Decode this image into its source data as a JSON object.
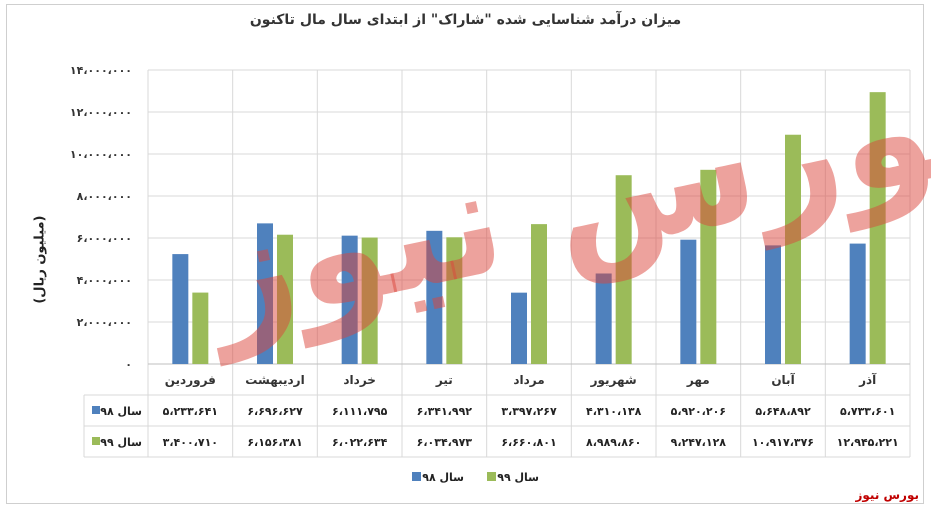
{
  "colors": {
    "s98": "#4f81bd",
    "s99": "#9bbb59",
    "grid": "#d9d9d9",
    "watermark": "#dc463c",
    "source": "#c00000"
  },
  "source_label": "بورس نیوز",
  "watermark_text": "بورس نیوز",
  "chart_data": {
    "type": "bar",
    "title": "میزان درآمد شناسایی شده \"شاراک\" از ابتدای سال مال تاکنون",
    "ylabel": "(میلیون ریال)",
    "xlabel": "",
    "ylim": [
      0,
      14000000
    ],
    "yticks": [
      0,
      2000000,
      4000000,
      6000000,
      8000000,
      10000000,
      12000000,
      14000000
    ],
    "ytick_labels": [
      "۰",
      "۲،۰۰۰،۰۰۰",
      "۴،۰۰۰،۰۰۰",
      "۶،۰۰۰،۰۰۰",
      "۸،۰۰۰،۰۰۰",
      "۱۰،۰۰۰،۰۰۰",
      "۱۲،۰۰۰،۰۰۰",
      "۱۴،۰۰۰،۰۰۰"
    ],
    "categories": [
      "فروردین",
      "اردیبهشت",
      "خرداد",
      "تیر",
      "مرداد",
      "شهریور",
      "مهر",
      "آبان",
      "آذر"
    ],
    "legend_position": "bottom",
    "series": [
      {
        "name": "سال ۹۸",
        "color": "#4f81bd",
        "values": [
          5233641,
          6696627,
          6111795,
          6341992,
          3397267,
          4310138,
          5920206,
          5648892,
          5733601
        ],
        "labels": [
          "۵،۲۳۳،۶۴۱",
          "۶،۶۹۶،۶۲۷",
          "۶،۱۱۱،۷۹۵",
          "۶،۳۴۱،۹۹۲",
          "۳،۳۹۷،۲۶۷",
          "۴،۳۱۰،۱۳۸",
          "۵،۹۲۰،۲۰۶",
          "۵،۶۴۸،۸۹۲",
          "۵،۷۳۳،۶۰۱"
        ]
      },
      {
        "name": "سال ۹۹",
        "color": "#9bbb59",
        "values": [
          3400710,
          6156381,
          6022634,
          6034973,
          6660801,
          8989860,
          9247128,
          10917376,
          12945221
        ],
        "labels": [
          "۳،۴۰۰،۷۱۰",
          "۶،۱۵۶،۳۸۱",
          "۶،۰۲۲،۶۳۴",
          "۶،۰۳۴،۹۷۳",
          "۶،۶۶۰،۸۰۱",
          "۸،۹۸۹،۸۶۰",
          "۹،۲۴۷،۱۲۸",
          "۱۰،۹۱۷،۳۷۶",
          "۱۲،۹۴۵،۲۲۱"
        ]
      }
    ]
  }
}
